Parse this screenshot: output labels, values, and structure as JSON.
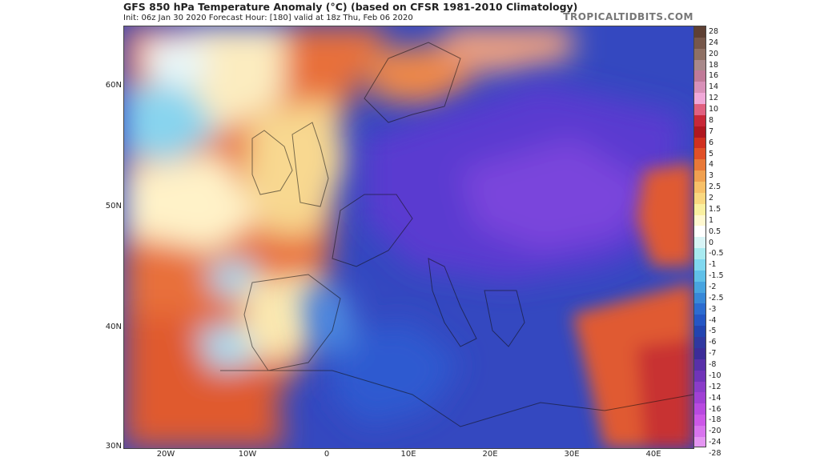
{
  "header": {
    "title": "GFS 850 hPa Temperature Anomaly (°C) (based on CFSR 1981-2010 Climatology)",
    "subtitle": "Init: 06z Jan 30 2020   Forecast Hour: [180]   valid at 18z Thu, Feb 06 2020",
    "brand": "TROPICALTIDBITS.COM"
  },
  "axes": {
    "lat_labels": [
      "60N",
      "50N",
      "40N",
      "30N"
    ],
    "lon_labels": [
      "20W",
      "10W",
      "0",
      "10E",
      "20E",
      "30E",
      "40E"
    ]
  },
  "colorbar": {
    "labels": [
      "28",
      "24",
      "20",
      "18",
      "16",
      "14",
      "12",
      "10",
      "8",
      "7",
      "6",
      "5",
      "4",
      "3",
      "2.5",
      "2",
      "1.5",
      "1",
      "0.5",
      "0",
      "-0.5",
      "-1",
      "-1.5",
      "-2",
      "-2.5",
      "-3",
      "-4",
      "-5",
      "-6",
      "-7",
      "-8",
      "-10",
      "-12",
      "-14",
      "-16",
      "-18",
      "-20",
      "-24",
      "-28"
    ],
    "colors": [
      "#5e4034",
      "#76574a",
      "#8e7064",
      "#a8898a",
      "#c07a98",
      "#d890b8",
      "#f0a8d8",
      "#e06080",
      "#c82838",
      "#b01820",
      "#d03020",
      "#e05028",
      "#e87838",
      "#f0a050",
      "#f8c068",
      "#fad880",
      "#faf0a0",
      "#fff8d0",
      "#ffffff",
      "#d8f4f6",
      "#a8eaf0",
      "#80d8f0",
      "#60c0e8",
      "#48a4e0",
      "#3888d8",
      "#2c6cd0",
      "#2456c4",
      "#2244b0",
      "#3038a0",
      "#3c2c98",
      "#5830a8",
      "#7034b8",
      "#8a3cc8",
      "#a040d4",
      "#b84ae0",
      "#cc58e8",
      "#d874ee",
      "#e496f2"
    ]
  }
}
